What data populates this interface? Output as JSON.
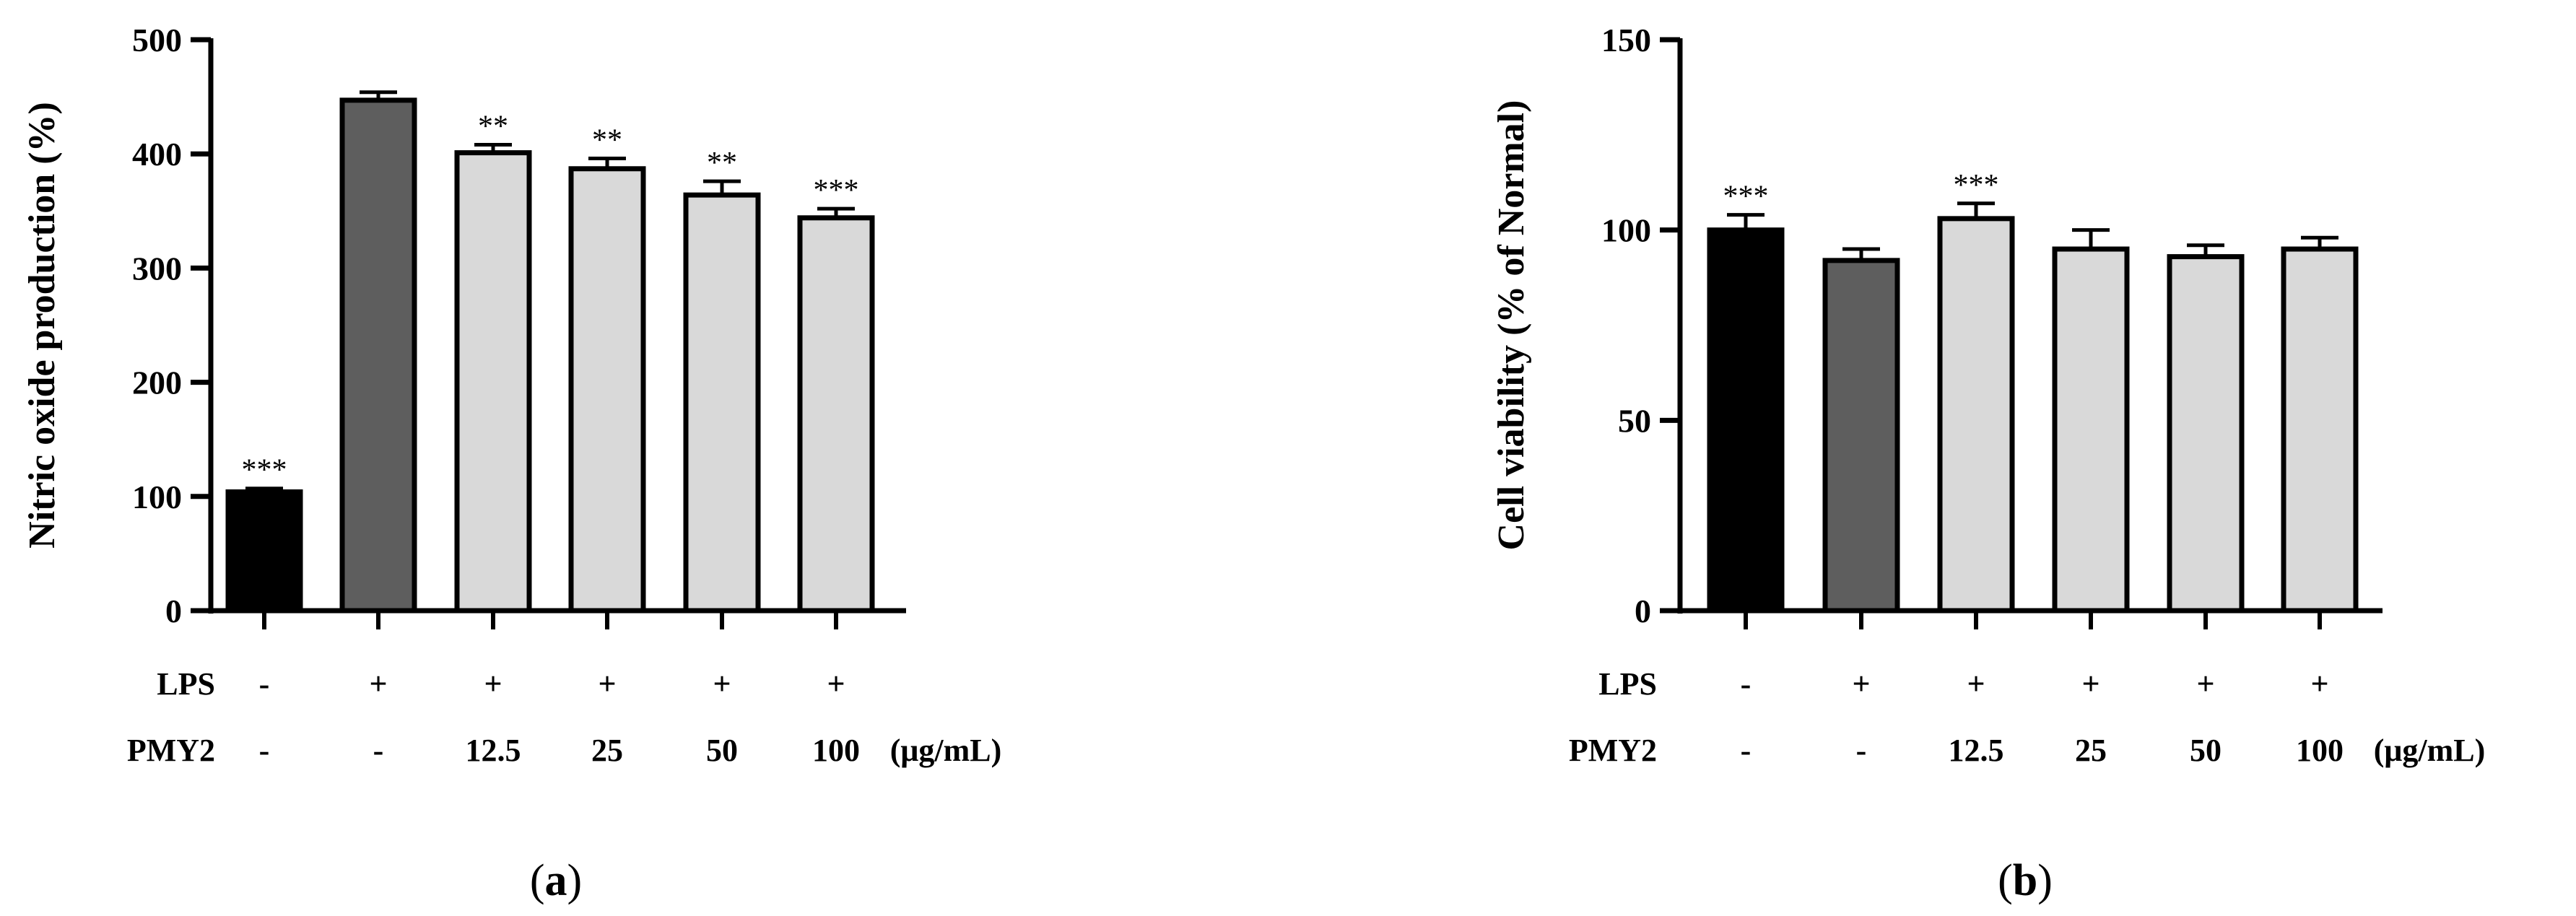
{
  "chart_data": [
    {
      "type": "bar",
      "panel_label": {
        "open": "(",
        "letter": "a",
        "close": ")"
      },
      "ylabel": "Nitric oxide production (%)",
      "ylim": [
        0,
        500
      ],
      "yticks": [
        0,
        100,
        200,
        300,
        400,
        500
      ],
      "values": [
        104,
        447,
        401,
        387,
        364,
        344
      ],
      "errors": [
        3,
        7,
        7,
        9,
        12,
        8
      ],
      "significance": [
        "***",
        "",
        "**",
        "**",
        "**",
        "***"
      ],
      "colors": [
        "#000000",
        "#5e5e5e",
        "#d9d9d9",
        "#d9d9d9",
        "#d9d9d9",
        "#d9d9d9"
      ],
      "condition_rows": [
        {
          "label": "LPS",
          "values": [
            "-",
            "+",
            "+",
            "+",
            "+",
            "+"
          ],
          "unit": ""
        },
        {
          "label": "PMY2",
          "values": [
            "-",
            "-",
            "12.5",
            "25",
            "50",
            "100"
          ],
          "unit": "(μg/mL)"
        }
      ],
      "grid": false
    },
    {
      "type": "bar",
      "panel_label": {
        "open": "(",
        "letter": "b",
        "close": ")"
      },
      "ylabel": "Cell viability (% of Normal)",
      "ylim": [
        0,
        150
      ],
      "yticks": [
        0,
        50,
        100,
        150
      ],
      "values": [
        100,
        92,
        103,
        95,
        93,
        95
      ],
      "errors": [
        4,
        3,
        4,
        5,
        3,
        3
      ],
      "significance": [
        "***",
        "",
        "***",
        "",
        "",
        ""
      ],
      "colors": [
        "#000000",
        "#5e5e5e",
        "#d9d9d9",
        "#d9d9d9",
        "#d9d9d9",
        "#d9d9d9"
      ],
      "condition_rows": [
        {
          "label": "LPS",
          "values": [
            "-",
            "+",
            "+",
            "+",
            "+",
            "+"
          ],
          "unit": ""
        },
        {
          "label": "PMY2",
          "values": [
            "-",
            "-",
            "12.5",
            "25",
            "50",
            "100"
          ],
          "unit": "(μg/mL)"
        }
      ],
      "grid": false
    }
  ]
}
